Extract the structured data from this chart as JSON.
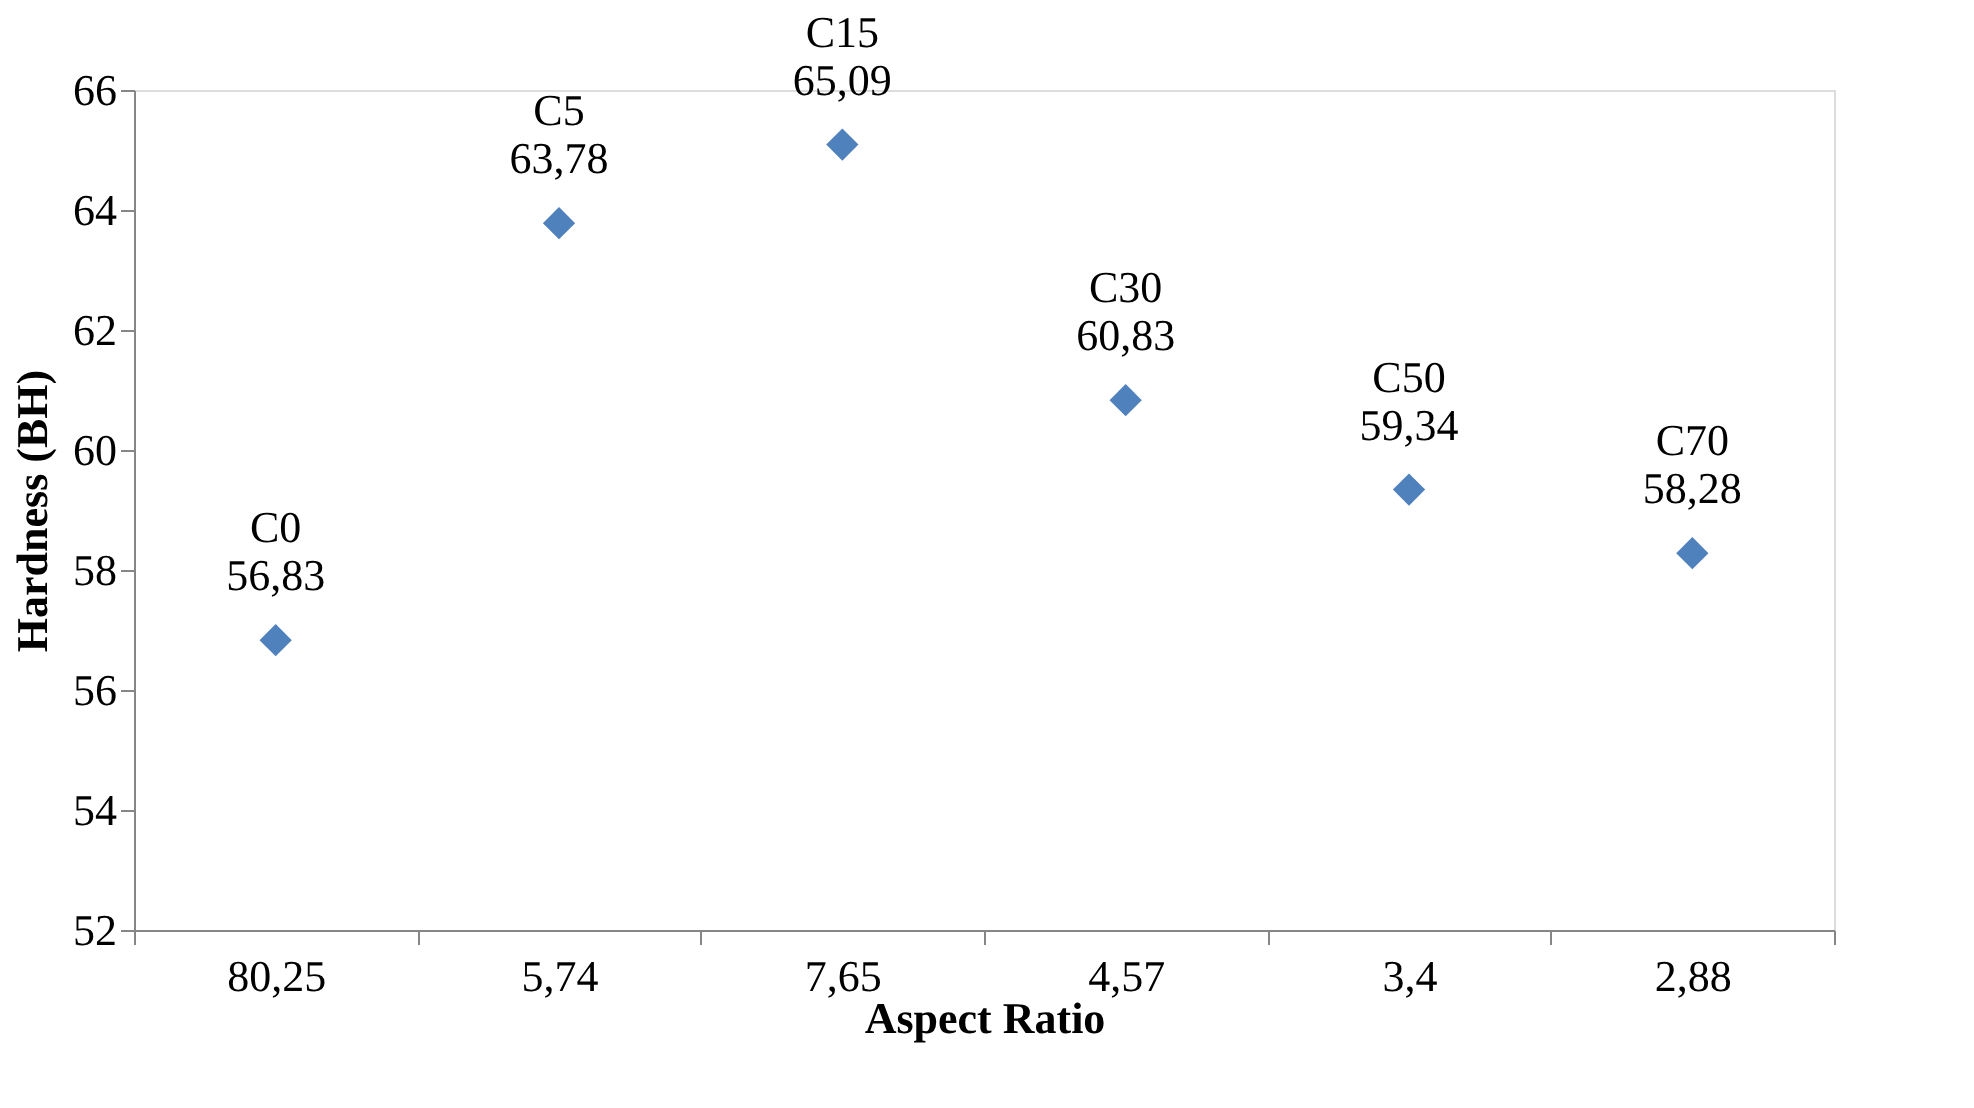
{
  "chart_data": {
    "type": "scatter",
    "xlabel": "Aspect Ratio",
    "ylabel": "Hardness (BH)",
    "categories": [
      "80,25",
      "5,74",
      "7,65",
      "4,57",
      "3,4",
      "2,88"
    ],
    "series": [
      {
        "color": "#4f81bd",
        "values": [
          56.83,
          63.78,
          65.09,
          60.83,
          59.34,
          58.28
        ],
        "value_labels": [
          "C0\n56,83",
          "C5\n63,78",
          "C15\n65,09",
          "C30\n60,83",
          "C50\n59,34",
          "C70\n58,28"
        ]
      }
    ],
    "ylim": [
      52,
      66
    ],
    "yticks": [
      52,
      54,
      56,
      58,
      60,
      62,
      64,
      66
    ],
    "marker": "diamond",
    "grid": false
  }
}
